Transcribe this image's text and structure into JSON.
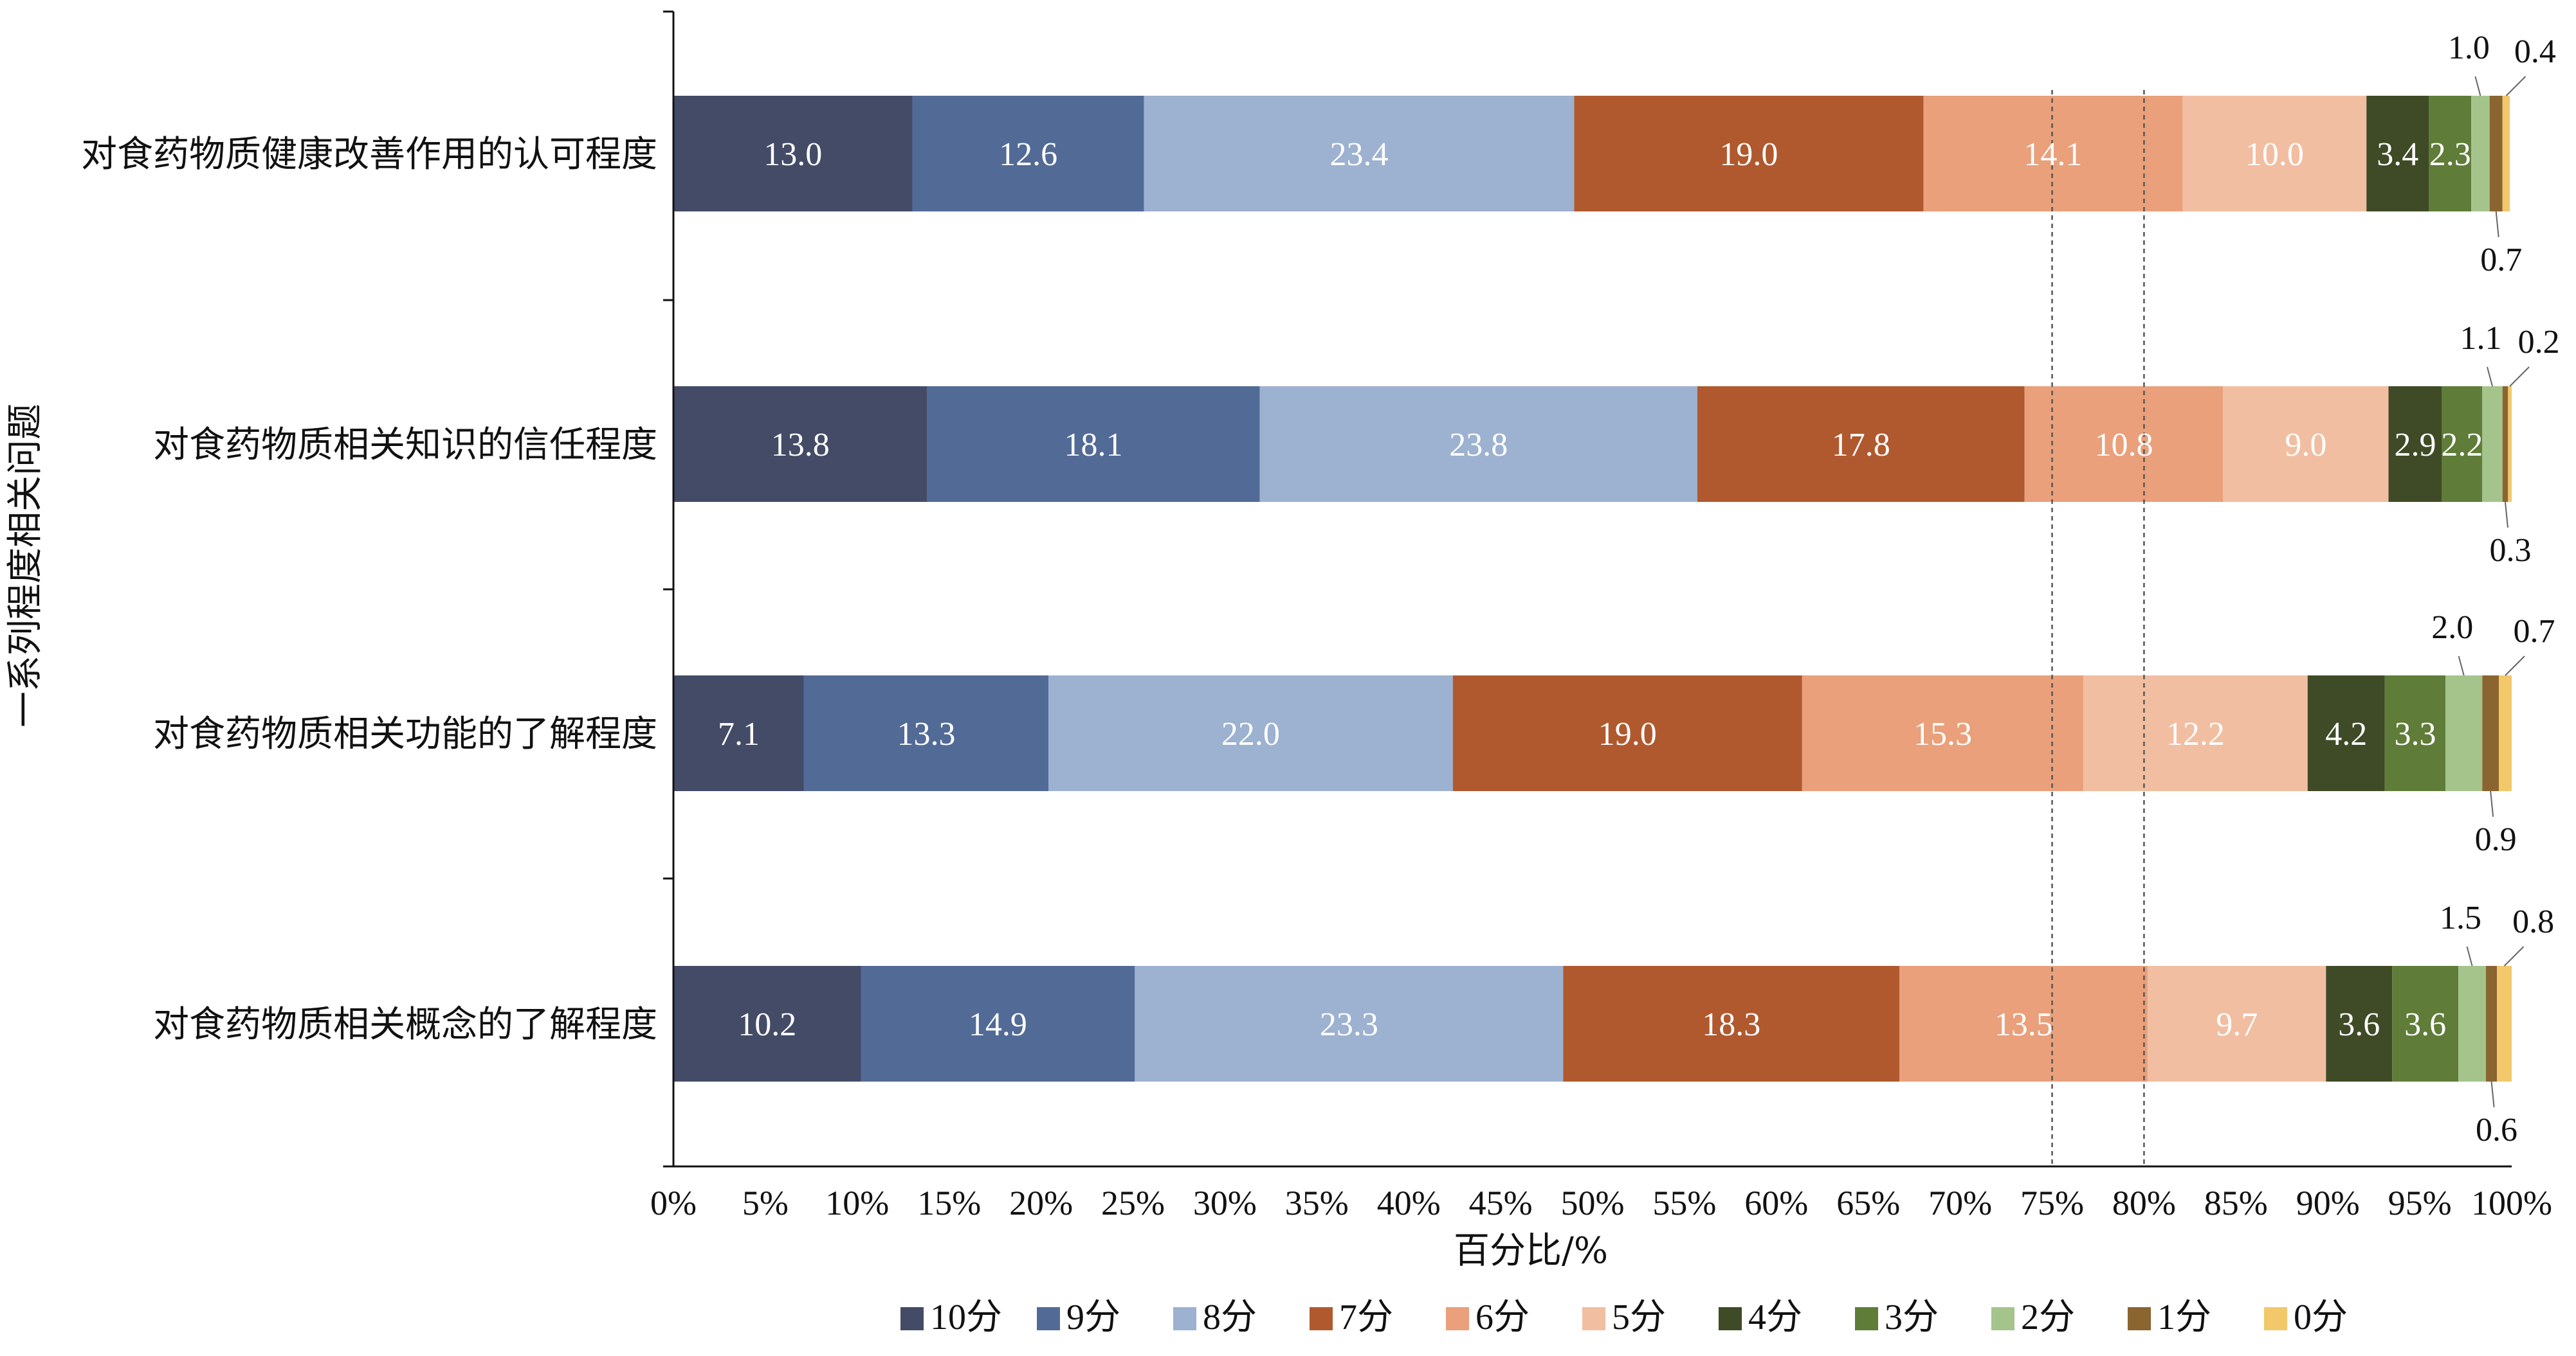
{
  "chart_data": {
    "type": "bar",
    "orientation": "horizontal",
    "stacked": true,
    "xlabel": "百分比/%",
    "ylabel": "一系列程度相关问题",
    "xlim": [
      0,
      100
    ],
    "x_ticks": [
      "0%",
      "5%",
      "10%",
      "15%",
      "20%",
      "25%",
      "30%",
      "35%",
      "40%",
      "45%",
      "50%",
      "55%",
      "60%",
      "65%",
      "70%",
      "75%",
      "80%",
      "85%",
      "90%",
      "95%",
      "100%"
    ],
    "reference_lines": [
      75,
      80
    ],
    "legend_position": "bottom",
    "categories": [
      "对食药物质健康改善作用的认可程度",
      "对食药物质相关知识的信任程度",
      "对食药物质相关功能的了解程度",
      "对食药物质相关概念的了解程度"
    ],
    "series": [
      {
        "name": "10分",
        "color": "#434b66",
        "label_color": "#ffffff",
        "values": [
          13.0,
          13.8,
          7.1,
          10.2
        ]
      },
      {
        "name": "9分",
        "color": "#526a96",
        "label_color": "#ffffff",
        "values": [
          12.6,
          18.1,
          13.3,
          14.9
        ]
      },
      {
        "name": "8分",
        "color": "#9db1d0",
        "label_color": "#ffffff",
        "values": [
          23.4,
          23.8,
          22.0,
          23.3
        ]
      },
      {
        "name": "7分",
        "color": "#b0592e",
        "label_color": "#ffffff",
        "values": [
          19.0,
          17.8,
          19.0,
          18.3
        ]
      },
      {
        "name": "6分",
        "color": "#e9a07b",
        "label_color": "#ffffff",
        "values": [
          14.1,
          10.8,
          15.3,
          13.5
        ]
      },
      {
        "name": "5分",
        "color": "#f2bea1",
        "label_color": "#ffffff",
        "values": [
          10.0,
          9.0,
          12.2,
          9.7
        ]
      },
      {
        "name": "4分",
        "color": "#3e4b26",
        "label_color": "#ffffff",
        "values": [
          3.4,
          2.9,
          4.2,
          3.6
        ]
      },
      {
        "name": "3分",
        "color": "#5f7c38",
        "label_color": "#ffffff",
        "values": [
          2.3,
          2.2,
          3.3,
          3.6
        ]
      },
      {
        "name": "2分",
        "color": "#a4c48c",
        "label_color": "#111111",
        "values": [
          1.0,
          1.1,
          2.0,
          1.5
        ]
      },
      {
        "name": "1分",
        "color": "#8a6530",
        "label_color": "#111111",
        "values": [
          0.7,
          0.3,
          0.9,
          0.6
        ]
      },
      {
        "name": "0分",
        "color": "#f2c86a",
        "label_color": "#111111",
        "values": [
          0.4,
          0.2,
          0.7,
          0.8
        ]
      }
    ]
  }
}
